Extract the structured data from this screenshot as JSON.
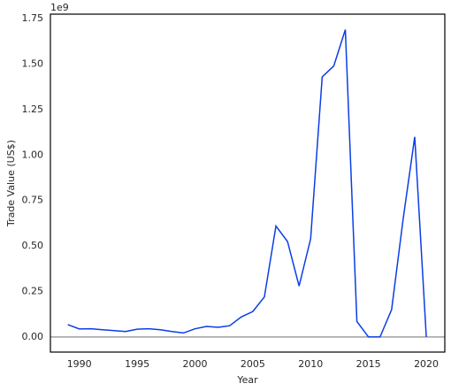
{
  "chart_data": {
    "type": "line",
    "x_label": "Year",
    "y_label": "Trade Value (US$)",
    "y_offset_label": "1e9",
    "x": [
      1989,
      1990,
      1991,
      1992,
      1993,
      1994,
      1995,
      1996,
      1997,
      1998,
      1999,
      2000,
      2001,
      2002,
      2003,
      2004,
      2005,
      2006,
      2007,
      2008,
      2009,
      2010,
      2011,
      2012,
      2013,
      2014,
      2015,
      2016,
      2017,
      2018,
      2019,
      2020
    ],
    "series": [
      {
        "color": "#0b3de6",
        "values": [
          0.068,
          0.044,
          0.045,
          0.04,
          0.035,
          0.03,
          0.043,
          0.045,
          0.04,
          0.03,
          0.022,
          0.045,
          0.058,
          0.053,
          0.062,
          0.11,
          0.14,
          0.22,
          0.61,
          0.525,
          0.28,
          0.54,
          1.43,
          1.49,
          1.69,
          0.085,
          0.0,
          0.0,
          0.15,
          0.65,
          1.1,
          0.0
        ]
      }
    ],
    "xlim": [
      1987.5,
      2021.6
    ],
    "xticks": [
      1990,
      1995,
      2000,
      2005,
      2010,
      2015,
      2020
    ],
    "ylim": [
      -0.083,
      1.775
    ],
    "yticks": [
      {
        "value": 0,
        "label": "0.00"
      },
      {
        "value": 0.25,
        "label": "0.25"
      },
      {
        "value": 0.5,
        "label": "0.50"
      },
      {
        "value": 0.75,
        "label": "0.75"
      },
      {
        "value": 1,
        "label": "1.00"
      },
      {
        "value": 1.25,
        "label": "1.25"
      },
      {
        "value": 1.5,
        "label": "1.50"
      },
      {
        "value": 1.75,
        "label": "1.75"
      }
    ],
    "zero_line": true,
    "zero_line_color": "#808080",
    "grid": false
  }
}
